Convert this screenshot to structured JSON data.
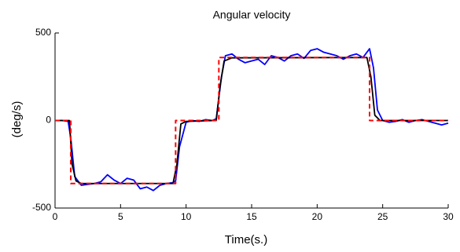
{
  "chart_data": {
    "type": "line",
    "title": "Angular velocity",
    "xlabel": "Time(s.)",
    "ylabel": "(deg/s)",
    "xlim": [
      0,
      30
    ],
    "xticks": [
      0,
      5,
      10,
      15,
      20,
      25,
      30
    ],
    "ylim": [
      -500,
      500
    ],
    "yticks": [
      -500,
      0,
      500
    ],
    "series": [
      {
        "color": "#0000ff",
        "dash": false,
        "x": [
          0,
          0.5,
          1,
          1.2,
          1.5,
          2,
          2.5,
          3,
          3.5,
          4,
          4.5,
          5,
          5.5,
          6,
          6.5,
          7,
          7.5,
          8,
          8.5,
          9,
          9.2,
          9.5,
          10,
          10.5,
          11,
          11.5,
          12,
          12.3,
          12.7,
          13,
          13.5,
          14,
          14.5,
          15,
          15.5,
          16,
          16.5,
          17,
          17.5,
          18,
          18.5,
          19,
          19.5,
          20,
          20.5,
          21,
          21.5,
          22,
          22.5,
          23,
          23.5,
          24,
          24.3,
          24.6,
          25,
          25.5,
          26,
          26.5,
          27,
          27.5,
          28,
          28.5,
          29,
          29.5,
          30
        ],
        "values": [
          0,
          0,
          -5,
          -100,
          -320,
          -370,
          -365,
          -360,
          -350,
          -310,
          -340,
          -360,
          -330,
          -340,
          -390,
          -380,
          -400,
          -370,
          -360,
          -355,
          -345,
          -150,
          -10,
          0,
          -5,
          5,
          0,
          10,
          250,
          370,
          380,
          350,
          330,
          340,
          350,
          320,
          370,
          360,
          340,
          370,
          380,
          355,
          400,
          410,
          390,
          380,
          370,
          350,
          370,
          380,
          360,
          410,
          300,
          60,
          0,
          -10,
          -5,
          5,
          -10,
          0,
          5,
          -5,
          -15,
          -25,
          -15
        ]
      },
      {
        "color": "#000000",
        "dash": false,
        "x": [
          0,
          1.1,
          1.3,
          1.6,
          2,
          9,
          9.3,
          9.6,
          10,
          12.3,
          12.6,
          12.9,
          13.5,
          23.8,
          24.1,
          24.4,
          24.8,
          30
        ],
        "values": [
          0,
          0,
          -250,
          -345,
          -360,
          -360,
          -250,
          -20,
          -5,
          0,
          200,
          340,
          358,
          360,
          250,
          30,
          0,
          0
        ]
      },
      {
        "color": "#ff0000",
        "dash": true,
        "x": [
          0,
          1.2,
          1.2,
          9.2,
          9.2,
          12.5,
          12.5,
          24,
          24,
          30
        ],
        "values": [
          0,
          0,
          -360,
          -360,
          0,
          0,
          360,
          360,
          0,
          0
        ]
      }
    ]
  }
}
